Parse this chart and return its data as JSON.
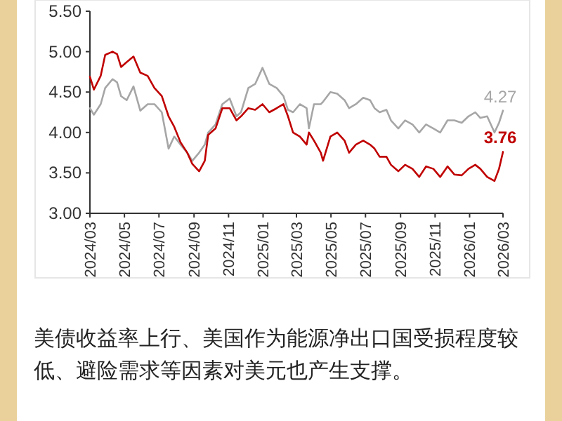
{
  "chart_data": {
    "type": "line",
    "x": [
      "2024-03-01",
      "2024-03-08",
      "2024-03-20",
      "2024-03-28",
      "2024-04-10",
      "2024-04-18",
      "2024-04-25",
      "2024-05-05",
      "2024-05-17",
      "2024-05-29",
      "2024-06-11",
      "2024-06-23",
      "2024-07-06",
      "2024-07-18",
      "2024-07-28",
      "2024-08-08",
      "2024-08-20",
      "2024-08-29",
      "2024-09-10",
      "2024-09-20",
      "2024-09-26",
      "2024-10-09",
      "2024-10-21",
      "2024-11-03",
      "2024-11-15",
      "2024-11-23",
      "2024-12-06",
      "2024-12-18",
      "2024-12-31",
      "2025-01-12",
      "2025-01-25",
      "2025-02-06",
      "2025-02-14",
      "2025-02-23",
      "2025-03-07",
      "2025-03-19",
      "2025-03-23",
      "2025-04-01",
      "2025-04-13",
      "2025-04-17",
      "2025-04-30",
      "2025-05-12",
      "2025-05-25",
      "2025-06-02",
      "2025-06-14",
      "2025-06-27",
      "2025-07-09",
      "2025-07-17",
      "2025-07-26",
      "2025-08-07",
      "2025-08-15",
      "2025-08-28",
      "2025-09-09",
      "2025-09-22",
      "2025-10-04",
      "2025-10-16",
      "2025-10-29",
      "2025-11-10",
      "2025-11-23",
      "2025-12-05",
      "2025-12-18",
      "2025-12-30",
      "2026-01-11",
      "2026-01-20",
      "2026-02-01",
      "2026-02-14",
      "2026-02-22",
      "2026-03-01"
    ],
    "series": [
      {
        "color": "#a6a6a6",
        "values": [
          4.3,
          4.22,
          4.35,
          4.55,
          4.66,
          4.62,
          4.45,
          4.4,
          4.57,
          4.27,
          4.35,
          4.35,
          4.25,
          3.8,
          3.95,
          3.85,
          3.75,
          3.65,
          3.75,
          3.85,
          4.0,
          4.1,
          4.35,
          4.42,
          4.2,
          4.25,
          4.55,
          4.6,
          4.8,
          4.6,
          4.55,
          4.45,
          4.28,
          4.25,
          4.35,
          4.3,
          4.05,
          4.35,
          4.35,
          4.38,
          4.5,
          4.48,
          4.4,
          4.3,
          4.35,
          4.43,
          4.4,
          4.3,
          4.25,
          4.28,
          4.15,
          4.05,
          4.15,
          4.1,
          4.0,
          4.1,
          4.05,
          4.0,
          4.15,
          4.15,
          4.12,
          4.2,
          4.25,
          4.18,
          4.2,
          4.0,
          4.12,
          4.27
        ]
      },
      {
        "color": "#c00000",
        "values": [
          4.69,
          4.53,
          4.7,
          4.96,
          5.0,
          4.97,
          4.81,
          4.87,
          4.94,
          4.74,
          4.7,
          4.55,
          4.45,
          4.2,
          4.07,
          3.88,
          3.75,
          3.61,
          3.52,
          3.65,
          3.97,
          4.05,
          4.3,
          4.3,
          4.15,
          4.2,
          4.3,
          4.28,
          4.35,
          4.25,
          4.3,
          4.35,
          4.2,
          4.0,
          3.95,
          3.85,
          4.0,
          3.9,
          3.75,
          3.65,
          3.95,
          4.0,
          3.9,
          3.75,
          3.85,
          3.9,
          3.85,
          3.8,
          3.7,
          3.7,
          3.6,
          3.52,
          3.6,
          3.55,
          3.45,
          3.58,
          3.55,
          3.45,
          3.58,
          3.48,
          3.47,
          3.55,
          3.6,
          3.55,
          3.45,
          3.4,
          3.55,
          3.76
        ]
      }
    ],
    "xlim": [
      "2024-03-01",
      "2026-03-01"
    ],
    "xticks": [
      {
        "value": "2024-03-01",
        "label": "2024/03"
      },
      {
        "value": "2024-05-01",
        "label": "2024/05"
      },
      {
        "value": "2024-07-01",
        "label": "2024/07"
      },
      {
        "value": "2024-09-01",
        "label": "2024/09"
      },
      {
        "value": "2024-11-01",
        "label": "2024/11"
      },
      {
        "value": "2025-01-01",
        "label": "2025/01"
      },
      {
        "value": "2025-03-01",
        "label": "2025/03"
      },
      {
        "value": "2025-05-01",
        "label": "2025/05"
      },
      {
        "value": "2025-07-01",
        "label": "2025/07"
      },
      {
        "value": "2025-09-01",
        "label": "2025/09"
      },
      {
        "value": "2025-11-01",
        "label": "2025/11"
      },
      {
        "value": "2026-01-01",
        "label": "2026/01"
      },
      {
        "value": "2026-03-01",
        "label": "2026/03"
      }
    ],
    "ylim": [
      3.0,
      5.5
    ],
    "yticks": [
      {
        "value": 3.0,
        "label": "3.00"
      },
      {
        "value": 3.5,
        "label": "3.50"
      },
      {
        "value": 4.0,
        "label": "4.00"
      },
      {
        "value": 4.5,
        "label": "4.50"
      },
      {
        "value": 5.0,
        "label": "5.00"
      },
      {
        "value": 5.5,
        "label": "5.50"
      }
    ],
    "grid": false,
    "annotations": [
      {
        "text": "4.27",
        "x": "2026-03-01",
        "y": 4.27
      },
      {
        "text": "3.76",
        "x": "2026-03-01",
        "y": 3.76
      },
      "美债收益率上行、美国作为能源净出口国受损程度较低、避险需求等因素对美元也产生支撑。"
    ]
  }
}
